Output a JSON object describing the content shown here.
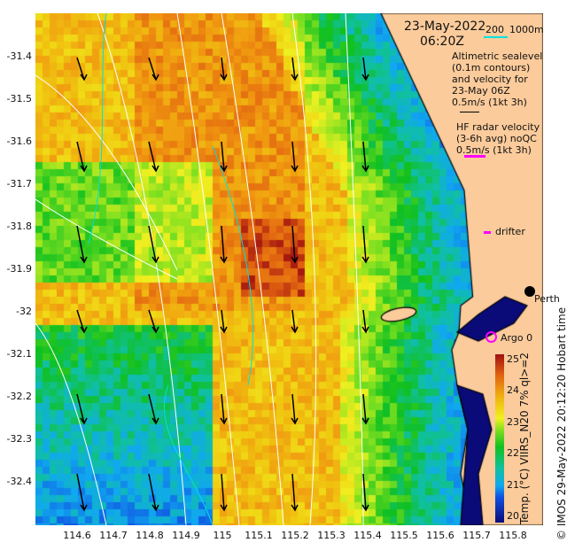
{
  "header": {
    "date": "23-May-2022",
    "time": "06:20Z",
    "scale_a": "200",
    "scale_b": "1000m"
  },
  "legend": {
    "altimetry": [
      "Altimetric sealevel",
      "(0.1m contours)",
      "and velocity for",
      "23-May 06Z",
      "0.5m/s (1kt 3h)"
    ],
    "hf_radar": [
      "HF radar velocity",
      "(3-6h avg) noQC",
      "0.5m/s (1kt 3h)"
    ],
    "drifter": "drifter",
    "argo": "Argo 0",
    "city": "Perth"
  },
  "axes": {
    "y_ticks": [
      "-31.4",
      "-31.5",
      "-31.6",
      "-31.7",
      "-31.8",
      "-31.9",
      "-32",
      "-32.1",
      "-32.2",
      "-32.3",
      "-32.4"
    ],
    "x_ticks": [
      "114.6",
      "114.7",
      "114.8",
      "114.9",
      "115",
      "115.1",
      "115.2",
      "115.3",
      "115.4",
      "115.5",
      "115.6",
      "115.7",
      "115.8"
    ]
  },
  "colorbar": {
    "label": "Temp. (°C) VIIRS_N20 7% ql>=2",
    "ticks": [
      "20",
      "21",
      "22",
      "23",
      "24",
      "25"
    ],
    "range": [
      20,
      25
    ]
  },
  "credit": "© IMOS 29-May-2022 20:12:20 Hobart time",
  "colors": {
    "land": "#fbcb9b",
    "hf": "#ff00ff",
    "contour": "#ffffff",
    "bathy": "#00e0e0"
  }
}
